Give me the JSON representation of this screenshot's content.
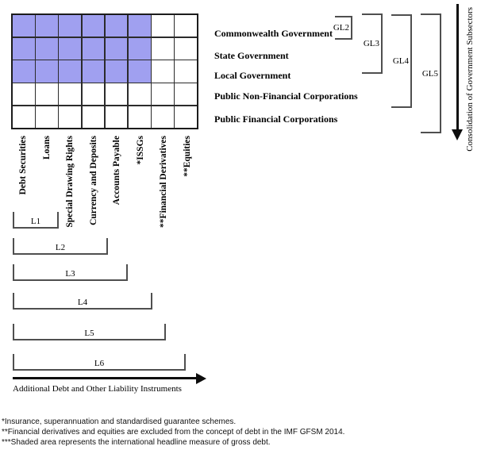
{
  "diagram": {
    "grid": {
      "columns": [
        "Debt Securities",
        "Loans",
        "Special Drawing Rights",
        "Currency and Deposits",
        "Accounts Payable",
        "*ISSGs",
        "**Financial Derivatives",
        "**Equities"
      ],
      "rows": [
        "Commonwealth Government",
        "State Government",
        "Local Government",
        "Public Non-Financial Corporations",
        "Public Financial Corporations"
      ],
      "shaded": {
        "cols": 6,
        "rows": 3,
        "color": "#A0A0F0"
      }
    },
    "gl_brackets": [
      {
        "label": "GL2",
        "covers_rows": [
          "Commonwealth Government"
        ]
      },
      {
        "label": "GL3",
        "covers_rows": [
          "Commonwealth Government",
          "State Government"
        ]
      },
      {
        "label": "GL4",
        "covers_rows": [
          "Commonwealth Government",
          "State Government",
          "Local Government",
          "Public Non-Financial Corporations"
        ]
      },
      {
        "label": "GL5",
        "covers_rows": [
          "Commonwealth Government",
          "State Government",
          "Local Government",
          "Public Non-Financial Corporations",
          "Public Financial Corporations"
        ]
      }
    ],
    "l_brackets": [
      {
        "label": "L1",
        "covers_cols": 2
      },
      {
        "label": "L2",
        "covers_cols": 4
      },
      {
        "label": "L3",
        "covers_cols": 5
      },
      {
        "label": "L4",
        "covers_cols": 6
      },
      {
        "label": "L5",
        "covers_cols": 7
      },
      {
        "label": "L6",
        "covers_cols": 8
      }
    ],
    "axes": {
      "right": "Consolidation of Government Subsectors",
      "bottom": "Additional Debt and Other Liability Instruments"
    },
    "footnotes": [
      "*Insurance, superannuation and standardised guarantee schemes.",
      "**Financial derivatives and equities are excluded from the concept of debt in the IMF GFSM 2014.",
      "***Shaded area represents the international headline measure of gross debt."
    ]
  }
}
